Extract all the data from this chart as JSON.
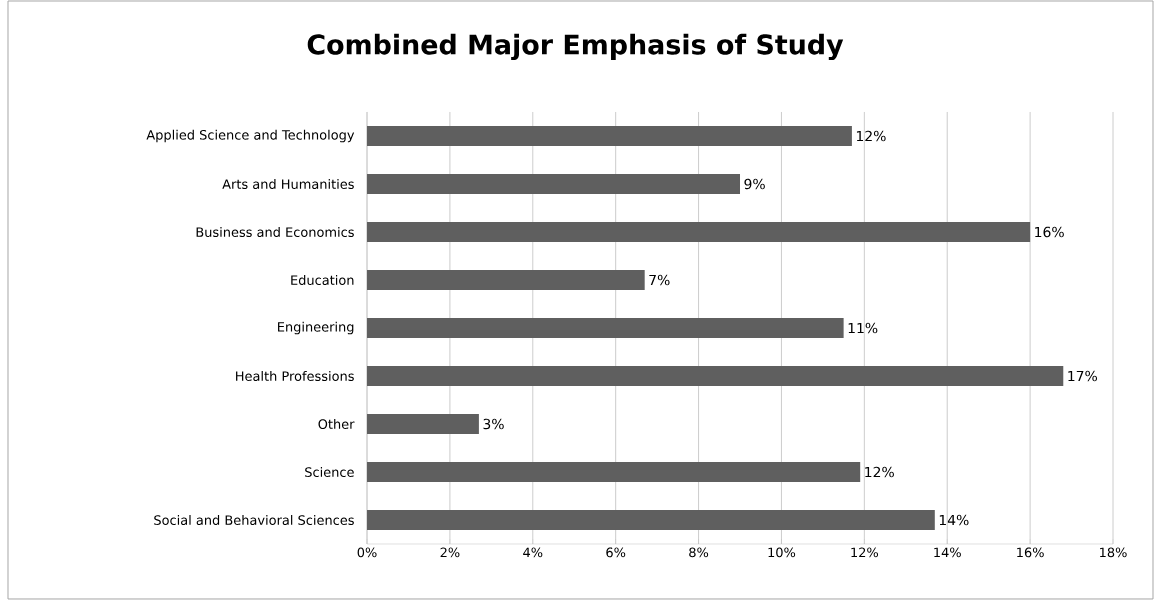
{
  "chart_data": {
    "type": "bar",
    "orientation": "horizontal",
    "title": "Combined Major Emphasis of Study",
    "categories": [
      "Applied Science and Technology",
      "Arts and Humanities",
      "Business and Economics",
      "Education",
      "Engineering",
      "Health Professions",
      "Other",
      "Science",
      "Social and Behavioral Sciences"
    ],
    "values": [
      11.7,
      9.0,
      16.0,
      6.7,
      11.5,
      16.8,
      2.7,
      11.9,
      13.7
    ],
    "value_labels": [
      "12%",
      "9%",
      "16%",
      "7%",
      "11%",
      "17%",
      "3%",
      "12%",
      "14%"
    ],
    "color": "#5f5f5f",
    "xlim": [
      0,
      18
    ],
    "xticks": [
      {
        "value": 0,
        "label": "0%"
      },
      {
        "value": 2,
        "label": "2%"
      },
      {
        "value": 4,
        "label": "4%"
      },
      {
        "value": 6,
        "label": "6%"
      },
      {
        "value": 8,
        "label": "8%"
      },
      {
        "value": 10,
        "label": "10%"
      },
      {
        "value": 12,
        "label": "12%"
      },
      {
        "value": 14,
        "label": "14%"
      },
      {
        "value": 16,
        "label": "16%"
      },
      {
        "value": 18,
        "label": "18%"
      }
    ],
    "grid": "x"
  }
}
